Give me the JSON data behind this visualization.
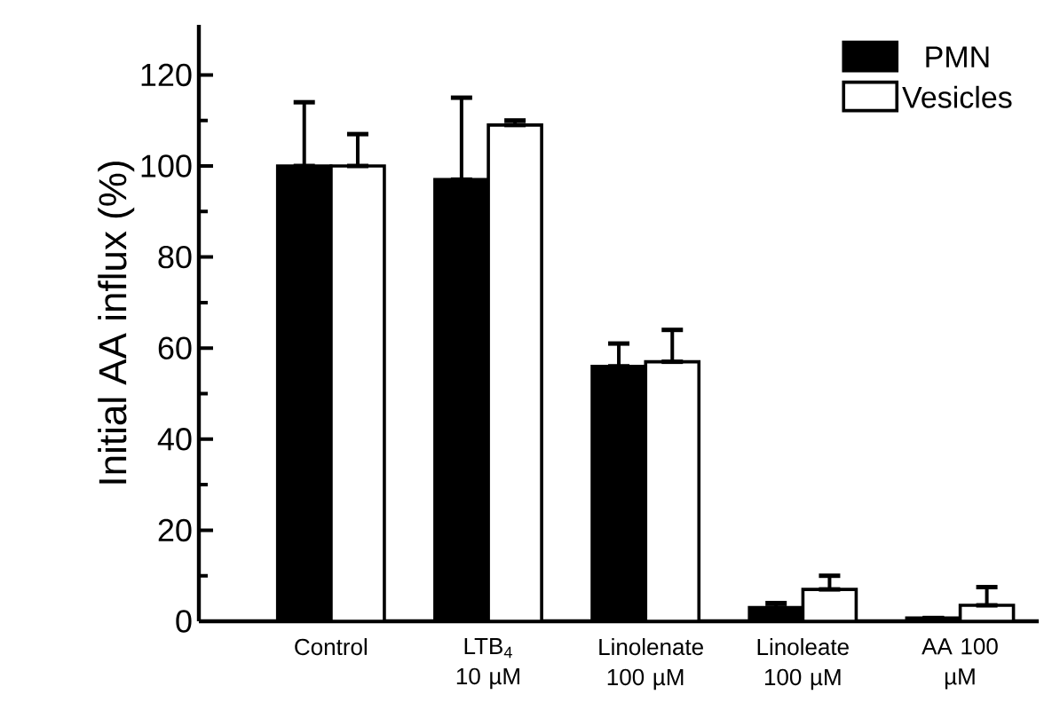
{
  "chart_data": {
    "type": "bar",
    "ylabel": "Initial AA influx (%)",
    "categories": [
      "Control",
      "LTB$_{4}$ 10 µM",
      "Linolenate 100 µM",
      "Linoleate 100 µM",
      "AA 100 µM"
    ],
    "series": [
      {
        "name": "PMN",
        "color": "#000000",
        "values": [
          100,
          97,
          56,
          3,
          0.7
        ],
        "errors": [
          [
            100,
            114
          ],
          [
            97,
            115
          ],
          [
            56,
            61
          ],
          [
            3,
            4
          ],
          [
            0.7,
            0.7
          ]
        ]
      },
      {
        "name": "Vesicles",
        "color": "#ffffff",
        "values": [
          100,
          109,
          57,
          7,
          3.5
        ],
        "errors": [
          [
            100,
            107
          ],
          [
            109,
            110
          ],
          [
            57,
            64
          ],
          [
            7,
            10
          ],
          [
            3.5,
            7.5
          ]
        ]
      }
    ],
    "ylim": [
      0,
      131
    ],
    "yticks": [
      0,
      20,
      40,
      60,
      80,
      100,
      120
    ],
    "grid": false,
    "legend": "top right"
  }
}
